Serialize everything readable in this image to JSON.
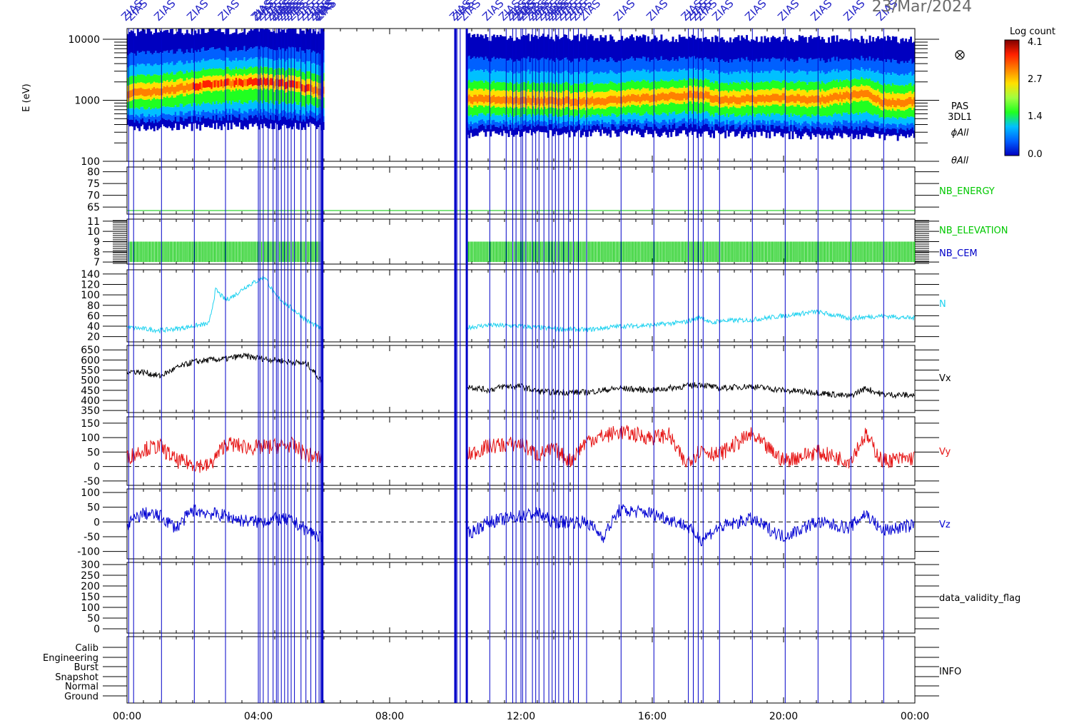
{
  "header": {
    "date": "23/Mar/2024",
    "event_label": "ZIAS"
  },
  "colorbar": {
    "title": "Log count",
    "ticks": [
      "4.1",
      "2.7",
      "1.4",
      "0.0"
    ],
    "values": [
      4.1,
      2.7,
      1.4,
      0.0
    ],
    "colors": [
      "#800000",
      "#ff2000",
      "#ff8000",
      "#ffe000",
      "#a0ff40",
      "#20ff20",
      "#00c0ff",
      "#0060ff",
      "#0000c0"
    ]
  },
  "colors": {
    "event_line": "#0000c8",
    "nb": "#00c800",
    "n": "#1ed2f0",
    "vx": "#000000",
    "vy": "#e61414",
    "vz": "#0000d2"
  },
  "chart_data": {
    "type": "line",
    "x_unit": "hours",
    "x_ticks": [
      "00:00",
      "04:00",
      "08:00",
      "12:00",
      "16:00",
      "20:00",
      "00:00"
    ],
    "x_tick_values": [
      0,
      4,
      8,
      12,
      16,
      20,
      24
    ],
    "data_gap": [
      5.95,
      10.35
    ],
    "event_times": [
      0.05,
      0.2,
      1.05,
      2.05,
      3.0,
      4.0,
      4.05,
      4.15,
      4.3,
      4.45,
      4.55,
      4.6,
      4.7,
      4.8,
      4.9,
      5.0,
      5.1,
      5.3,
      5.45,
      5.6,
      5.75,
      5.85,
      5.9,
      5.95,
      10.05,
      10.15,
      10.35,
      11.05,
      11.55,
      11.75,
      11.85,
      12.0,
      12.05,
      12.15,
      12.35,
      12.45,
      12.55,
      12.7,
      12.85,
      12.95,
      13.05,
      13.15,
      13.3,
      13.45,
      13.6,
      13.75,
      14.0,
      15.05,
      16.05,
      17.1,
      17.25,
      17.4,
      17.55,
      18.05,
      19.05,
      20.05,
      21.05,
      22.05,
      23.05
    ],
    "panels": [
      {
        "id": "spectrogram",
        "type": "heatmap",
        "ylabel": "E (eV)",
        "yscale": "log",
        "ylim": [
          100,
          15000
        ],
        "yticks": [
          "10000",
          "1000",
          "100"
        ],
        "ytick_values": [
          10000,
          1000,
          100
        ],
        "right_labels": [
          "PAS",
          "3DL1",
          "ϕAll",
          "θAll"
        ],
        "peak_energy_ev": {
          "x": [
            0,
            1,
            2,
            3,
            4,
            5,
            5.9,
            10.4,
            12,
            14,
            16,
            17.5,
            18,
            20,
            21,
            22.5,
            23,
            24
          ],
          "y": [
            1300,
            1400,
            1700,
            1900,
            2000,
            1800,
            1400,
            1050,
            1000,
            950,
            1100,
            1250,
            1000,
            1100,
            1000,
            1300,
            900,
            950
          ]
        },
        "energy_bounds_ev": {
          "x": [
            0,
            3,
            5.9,
            10.4,
            16,
            24
          ],
          "low": [
            350,
            380,
            380,
            280,
            290,
            250
          ],
          "high": [
            13000,
            14000,
            14000,
            11000,
            10500,
            10000
          ]
        }
      },
      {
        "id": "nb_energy",
        "yticks": [
          "80",
          "75",
          "70",
          "65"
        ],
        "ytick_values": [
          80,
          75,
          70,
          65
        ],
        "ylim": [
          62,
          82
        ],
        "series": [
          {
            "name": "NB_ENERGY",
            "x": [
              0,
              24
            ],
            "y": [
              63.5,
              63.5
            ]
          }
        ]
      },
      {
        "id": "nb_elevation",
        "yticks": [
          "11",
          "10",
          "9",
          "8",
          "7"
        ],
        "ytick_values": [
          11,
          10,
          9,
          8,
          7
        ],
        "ylim": [
          6.8,
          11.2
        ],
        "series": [
          {
            "name": "NB_ELEVATION",
            "x": [
              0,
              5.9,
              10.4,
              24
            ],
            "min": [
              7,
              7,
              7,
              7
            ],
            "max": [
              9,
              9,
              9,
              9
            ]
          },
          {
            "name": "NB_CEM",
            "x": [],
            "y": []
          }
        ]
      },
      {
        "id": "density",
        "yticks": [
          "140",
          "120",
          "100",
          "80",
          "60",
          "40",
          "20"
        ],
        "ytick_values": [
          140,
          120,
          100,
          80,
          60,
          40,
          20
        ],
        "ylim": [
          10,
          148
        ],
        "series": [
          {
            "name": "N",
            "x": [
              0,
              0.5,
              1,
              1.5,
              2,
              2.5,
              2.7,
              3,
              3.3,
              3.6,
              4,
              4.2,
              4.5,
              5,
              5.5,
              5.9,
              10.4,
              11,
              12,
              13,
              14,
              15,
              16,
              17,
              17.5,
              17.8,
              18,
              19,
              20,
              21,
              22,
              23,
              24
            ],
            "y": [
              38,
              35,
              32,
              35,
              40,
              45,
              110,
              90,
              100,
              115,
              128,
              135,
              100,
              75,
              50,
              35,
              38,
              42,
              40,
              35,
              33,
              40,
              42,
              48,
              58,
              45,
              50,
              52,
              60,
              68,
              55,
              60,
              55
            ]
          }
        ]
      },
      {
        "id": "vx",
        "yticks": [
          "650",
          "600",
          "550",
          "500",
          "450",
          "400",
          "350"
        ],
        "ytick_values": [
          650,
          600,
          550,
          500,
          450,
          400,
          350
        ],
        "ylim": [
          340,
          672
        ],
        "series": [
          {
            "name": "Vx",
            "x": [
              0,
              0.5,
              1,
              1.5,
              2,
              2.5,
              3,
              3.5,
              4,
              4.5,
              5,
              5.5,
              5.9,
              10.4,
              11,
              11.5,
              12,
              12.5,
              13,
              14,
              15,
              16,
              17,
              17.5,
              18,
              19,
              20,
              21,
              22,
              22.5,
              23,
              24
            ],
            "y": [
              545,
              540,
              520,
              560,
              590,
              600,
              605,
              620,
              610,
              600,
              590,
              580,
              500,
              470,
              450,
              470,
              470,
              445,
              440,
              440,
              460,
              450,
              470,
              480,
              460,
              470,
              450,
              440,
              420,
              460,
              430,
              425
            ]
          }
        ]
      },
      {
        "id": "vy",
        "yticks": [
          "150",
          "100",
          "50",
          "0",
          "-50"
        ],
        "ytick_values": [
          150,
          100,
          50,
          0,
          -50
        ],
        "ylim": [
          -65,
          172
        ],
        "zero_line": true,
        "series": [
          {
            "name": "Vy",
            "x": [
              0,
              0.5,
              1,
              1.5,
              2,
              2.5,
              3,
              3.5,
              4,
              4.5,
              5,
              5.5,
              5.9,
              10.4,
              11,
              12,
              12.5,
              13,
              13.5,
              14,
              15,
              16,
              16.5,
              17,
              17.5,
              18,
              19,
              20,
              21,
              22,
              22.5,
              23,
              24
            ],
            "y": [
              30,
              60,
              70,
              20,
              10,
              0,
              80,
              70,
              65,
              70,
              75,
              40,
              30,
              40,
              70,
              80,
              40,
              60,
              20,
              90,
              120,
              100,
              110,
              10,
              60,
              40,
              110,
              20,
              50,
              20,
              110,
              20,
              30
            ]
          }
        ]
      },
      {
        "id": "vz",
        "yticks": [
          "100",
          "50",
          "0",
          "-50",
          "-100"
        ],
        "ytick_values": [
          100,
          50,
          0,
          -50,
          -100
        ],
        "ylim": [
          -125,
          112
        ],
        "zero_line": true,
        "series": [
          {
            "name": "Vz",
            "x": [
              0,
              0.5,
              1,
              1.5,
              2,
              2.5,
              3,
              3.5,
              4,
              4.5,
              5,
              5.5,
              5.9,
              10.4,
              11,
              12,
              12.5,
              13,
              14,
              14.5,
              15,
              16,
              17,
              17.5,
              18,
              19,
              20,
              21,
              22,
              22.5,
              23,
              24
            ],
            "y": [
              -10,
              30,
              20,
              -20,
              40,
              30,
              20,
              5,
              0,
              10,
              5,
              -30,
              -50,
              -40,
              0,
              20,
              30,
              0,
              0,
              -50,
              40,
              30,
              -10,
              -60,
              -20,
              10,
              -50,
              0,
              -20,
              30,
              -30,
              -10
            ]
          }
        ]
      },
      {
        "id": "validity",
        "yticks": [
          "300",
          "250",
          "200",
          "150",
          "100",
          "50",
          "0"
        ],
        "ytick_values": [
          300,
          250,
          200,
          150,
          100,
          50,
          0
        ],
        "ylim": [
          -20,
          310
        ],
        "series": [
          {
            "name": "data_validity_flag",
            "x": [],
            "y": []
          }
        ]
      },
      {
        "id": "info",
        "ylabels": [
          "Calib",
          "Engineering",
          "Burst",
          "Snapshot",
          "Normal",
          "Ground"
        ],
        "series": [
          {
            "name": "INFO",
            "x": [],
            "y": []
          }
        ]
      }
    ]
  }
}
